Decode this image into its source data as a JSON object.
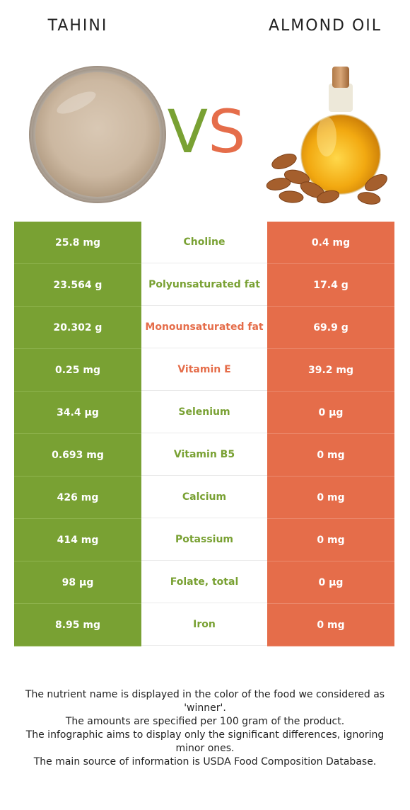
{
  "header": {
    "left_title": "TAHINI",
    "vs_v": "V",
    "vs_s": "S",
    "right_title": "ALMOND OIL"
  },
  "colors": {
    "left_winner": "#79a133",
    "right_winner": "#e56d4a"
  },
  "rows": [
    {
      "left": "25.8 mg",
      "nutrient": "Choline",
      "right": "0.4 mg",
      "winner": "left"
    },
    {
      "left": "23.564 g",
      "nutrient": "Polyunsaturated fat",
      "right": "17.4 g",
      "winner": "left"
    },
    {
      "left": "20.302 g",
      "nutrient": "Monounsaturated fat",
      "right": "69.9 g",
      "winner": "right"
    },
    {
      "left": "0.25 mg",
      "nutrient": "Vitamin E",
      "right": "39.2 mg",
      "winner": "right"
    },
    {
      "left": "34.4 µg",
      "nutrient": "Selenium",
      "right": "0 µg",
      "winner": "left"
    },
    {
      "left": "0.693 mg",
      "nutrient": "Vitamin B5",
      "right": "0 mg",
      "winner": "left"
    },
    {
      "left": "426 mg",
      "nutrient": "Calcium",
      "right": "0 mg",
      "winner": "left"
    },
    {
      "left": "414 mg",
      "nutrient": "Potassium",
      "right": "0 mg",
      "winner": "left"
    },
    {
      "left": "98 µg",
      "nutrient": "Folate, total",
      "right": "0 µg",
      "winner": "left"
    },
    {
      "left": "8.95 mg",
      "nutrient": "Iron",
      "right": "0 mg",
      "winner": "left"
    }
  ],
  "footer": {
    "line1": "The nutrient name is displayed in the color of the food we considered as 'winner'.",
    "line2": "The amounts are specified per 100 gram of the product.",
    "line3": "The infographic aims to display only the significant differences, ignoring minor ones.",
    "line4": "The main source of information is USDA Food Composition Database."
  }
}
